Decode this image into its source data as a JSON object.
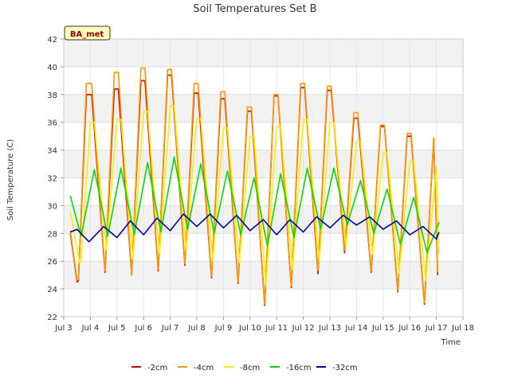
{
  "chart_data": {
    "type": "line",
    "title": "Soil Temperatures Set B",
    "xlabel": "Time",
    "ylabel": "Soil Temperature (C)",
    "ylim": [
      22,
      42
    ],
    "yticks": [
      22,
      24,
      26,
      28,
      30,
      32,
      34,
      36,
      38,
      40,
      42
    ],
    "xlim": [
      3,
      18
    ],
    "xticks": [
      3,
      4,
      5,
      6,
      7,
      8,
      9,
      10,
      11,
      12,
      13,
      14,
      15,
      16,
      17,
      18
    ],
    "xtick_labels": [
      "Jul 3",
      "Jul 4",
      "Jul 5",
      "Jul 6",
      "Jul 7",
      "Jul 8",
      "Jul 9",
      "Jul 10",
      "Jul 11",
      "Jul 12",
      "Jul 13",
      "Jul 14",
      "Jul 15",
      "Jul 16",
      "Jul 17",
      "Jul 18"
    ],
    "grid": true,
    "legend_position": "bottom",
    "badge": "BA_met",
    "series": [
      {
        "name": "-2cm",
        "color": "#dd0000",
        "x": [
          3.25,
          3.5,
          3.55,
          3.85,
          4.05,
          4.55,
          4.9,
          5.05,
          5.55,
          5.9,
          6.05,
          6.55,
          6.9,
          7.05,
          7.55,
          7.9,
          8.05,
          8.55,
          8.9,
          9.05,
          9.55,
          9.9,
          10.05,
          10.55,
          10.9,
          11.05,
          11.55,
          11.9,
          12.05,
          12.55,
          12.9,
          13.05,
          13.55,
          13.9,
          14.05,
          14.55,
          14.9,
          15.05,
          15.55,
          15.9,
          16.05,
          16.55,
          16.9,
          17.05
        ],
        "y": [
          28.0,
          24.5,
          24.6,
          38.0,
          38.0,
          25.2,
          38.4,
          38.4,
          25.0,
          39.0,
          39.0,
          25.3,
          39.4,
          39.4,
          25.7,
          38.1,
          38.1,
          24.8,
          37.7,
          37.7,
          24.4,
          36.8,
          36.8,
          22.8,
          37.9,
          37.9,
          24.1,
          38.5,
          38.5,
          25.1,
          38.3,
          38.3,
          26.6,
          36.3,
          36.3,
          25.2,
          35.7,
          35.7,
          23.8,
          35.0,
          35.0,
          22.9,
          34.8,
          25.0
        ]
      },
      {
        "name": "-4cm",
        "color": "#ff9900",
        "x": [
          3.25,
          3.5,
          3.55,
          3.85,
          4.05,
          4.55,
          4.9,
          5.05,
          5.55,
          5.9,
          6.05,
          6.55,
          6.9,
          7.05,
          7.55,
          7.9,
          8.05,
          8.55,
          8.9,
          9.05,
          9.55,
          9.9,
          10.05,
          10.55,
          10.9,
          11.05,
          11.55,
          11.9,
          12.05,
          12.55,
          12.9,
          13.05,
          13.55,
          13.9,
          14.05,
          14.55,
          14.9,
          15.05,
          15.55,
          15.9,
          16.05,
          16.55,
          16.9,
          17.05
        ],
        "y": [
          28.2,
          24.6,
          24.7,
          38.8,
          38.8,
          25.3,
          39.6,
          39.6,
          25.0,
          39.9,
          39.9,
          25.4,
          39.8,
          39.8,
          25.8,
          38.8,
          38.8,
          24.9,
          38.2,
          38.2,
          24.5,
          37.1,
          37.1,
          22.9,
          38.0,
          38.0,
          24.2,
          38.8,
          38.8,
          25.3,
          38.6,
          38.6,
          26.8,
          36.7,
          36.7,
          25.3,
          35.8,
          35.8,
          23.9,
          35.2,
          35.2,
          23.0,
          34.9,
          25.2
        ]
      },
      {
        "name": "-8cm",
        "color": "#ffee00",
        "x": [
          3.25,
          3.6,
          3.65,
          4.0,
          4.15,
          4.6,
          5.0,
          5.15,
          5.6,
          6.0,
          6.15,
          6.6,
          7.0,
          7.15,
          7.6,
          8.0,
          8.15,
          8.6,
          9.0,
          9.15,
          9.6,
          10.0,
          10.15,
          10.6,
          11.0,
          11.15,
          11.6,
          12.0,
          12.15,
          12.6,
          13.0,
          13.15,
          13.6,
          14.0,
          14.15,
          14.6,
          15.0,
          15.15,
          15.6,
          16.0,
          16.15,
          16.6,
          17.0,
          17.1
        ],
        "y": [
          29.6,
          25.9,
          26.0,
          36.0,
          36.0,
          26.8,
          36.2,
          36.2,
          26.1,
          36.8,
          36.8,
          26.5,
          37.2,
          37.2,
          26.7,
          36.3,
          36.3,
          26.0,
          35.6,
          35.6,
          25.9,
          35.0,
          35.0,
          24.3,
          35.7,
          35.7,
          25.4,
          36.2,
          36.2,
          26.0,
          36.0,
          36.0,
          27.1,
          34.6,
          34.6,
          26.5,
          33.8,
          33.8,
          25.1,
          33.2,
          33.2,
          24.6,
          32.8,
          26.5
        ]
      },
      {
        "name": "-16cm",
        "color": "#00dd00",
        "x": [
          3.25,
          3.65,
          4.15,
          4.65,
          5.15,
          5.65,
          6.15,
          6.65,
          7.15,
          7.65,
          8.15,
          8.65,
          9.15,
          9.65,
          10.15,
          10.65,
          11.15,
          11.65,
          12.15,
          12.65,
          13.15,
          13.65,
          14.15,
          14.65,
          15.15,
          15.65,
          16.15,
          16.65,
          17.1
        ],
        "y": [
          30.7,
          27.8,
          32.6,
          27.8,
          32.7,
          27.9,
          33.1,
          28.1,
          33.5,
          28.3,
          33.0,
          28.0,
          32.5,
          27.9,
          32.0,
          27.1,
          32.3,
          27.7,
          32.7,
          28.3,
          32.7,
          28.6,
          31.8,
          28.0,
          31.2,
          27.2,
          30.6,
          26.6,
          28.8
        ]
      },
      {
        "name": "-32cm",
        "color": "#0000bb",
        "x": [
          3.25,
          3.5,
          3.95,
          4.5,
          5.0,
          5.5,
          6.0,
          6.5,
          7.0,
          7.5,
          8.0,
          8.5,
          9.0,
          9.5,
          10.0,
          10.5,
          11.0,
          11.5,
          12.0,
          12.5,
          13.0,
          13.5,
          14.0,
          14.5,
          15.0,
          15.5,
          16.0,
          16.5,
          17.0,
          17.1
        ],
        "y": [
          28.1,
          28.3,
          27.4,
          28.5,
          27.7,
          28.9,
          27.9,
          29.1,
          28.2,
          29.4,
          28.5,
          29.4,
          28.4,
          29.3,
          28.2,
          29.0,
          27.9,
          29.0,
          28.1,
          29.2,
          28.4,
          29.3,
          28.6,
          29.2,
          28.3,
          28.9,
          27.9,
          28.5,
          27.6,
          28.1
        ]
      }
    ]
  }
}
